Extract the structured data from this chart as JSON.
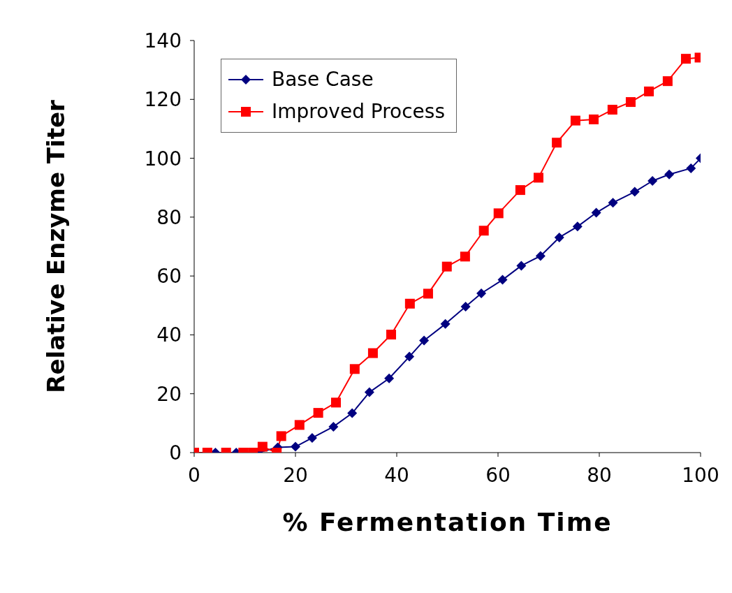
{
  "chart_data": {
    "type": "line",
    "xlabel": "% Fermentation Time",
    "ylabel": "Relative Enzyme Titer",
    "xlim": [
      0,
      100
    ],
    "xticks": [
      0,
      20,
      40,
      60,
      80,
      100
    ],
    "ylim": [
      0,
      140
    ],
    "yticks": [
      0,
      20,
      40,
      60,
      80,
      100,
      120,
      140
    ],
    "grid": false,
    "legend": "top left",
    "series": [
      {
        "name": "Base Case",
        "color": "#000080",
        "marker": "diamond",
        "x": [
          0,
          4.2,
          6.2,
          8.3,
          12.6,
          16.5,
          20,
          23.3,
          27.5,
          31.2,
          34.6,
          38.5,
          42.5,
          45.4,
          49.6,
          53.6,
          56.7,
          60.9,
          64.6,
          68.4,
          72.1,
          75.7,
          79.4,
          82.7,
          87,
          90.5,
          93.8,
          98.1,
          100
        ],
        "values": [
          0,
          0,
          0,
          0,
          0,
          1.8,
          2,
          5,
          8.8,
          13.4,
          20.5,
          25.2,
          32.6,
          38.1,
          43.7,
          49.6,
          54.1,
          58.7,
          63.5,
          66.8,
          73.1,
          76.8,
          81.5,
          84.9,
          88.6,
          92.3,
          94.5,
          96.6,
          100
        ]
      },
      {
        "name": "Improved Process",
        "color": "#ff0000",
        "marker": "square",
        "x": [
          0,
          2.6,
          6.3,
          9.7,
          11.6,
          13.5,
          16.3,
          17.2,
          20.8,
          24.5,
          28,
          31.7,
          35.3,
          38.9,
          42.6,
          46.2,
          49.9,
          53.5,
          57.2,
          60.1,
          64.4,
          68,
          71.6,
          75.3,
          78.9,
          82.6,
          86.2,
          89.8,
          93.5,
          97.1,
          99.8
        ],
        "values": [
          0,
          0,
          0,
          0,
          0,
          2,
          0,
          5.6,
          9.4,
          13.5,
          17,
          28.4,
          33.8,
          40.1,
          50.6,
          54,
          63.2,
          66.6,
          75.4,
          81.3,
          89.2,
          93.4,
          105.3,
          112.8,
          113.2,
          116.5,
          119.1,
          122.7,
          126.2,
          133.8,
          134.2
        ]
      }
    ]
  }
}
